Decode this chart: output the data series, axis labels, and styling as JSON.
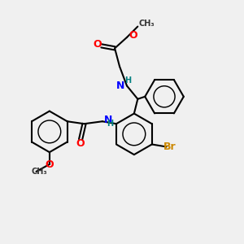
{
  "background_color": "#f0f0f0",
  "bond_color": "#000000",
  "bond_width": 1.5,
  "atom_colors": {
    "O": "#ff0000",
    "N": "#0000ff",
    "Br": "#cc8800",
    "C": "#000000",
    "H": "#008080"
  },
  "font_size_atom": 9,
  "font_size_small": 8
}
